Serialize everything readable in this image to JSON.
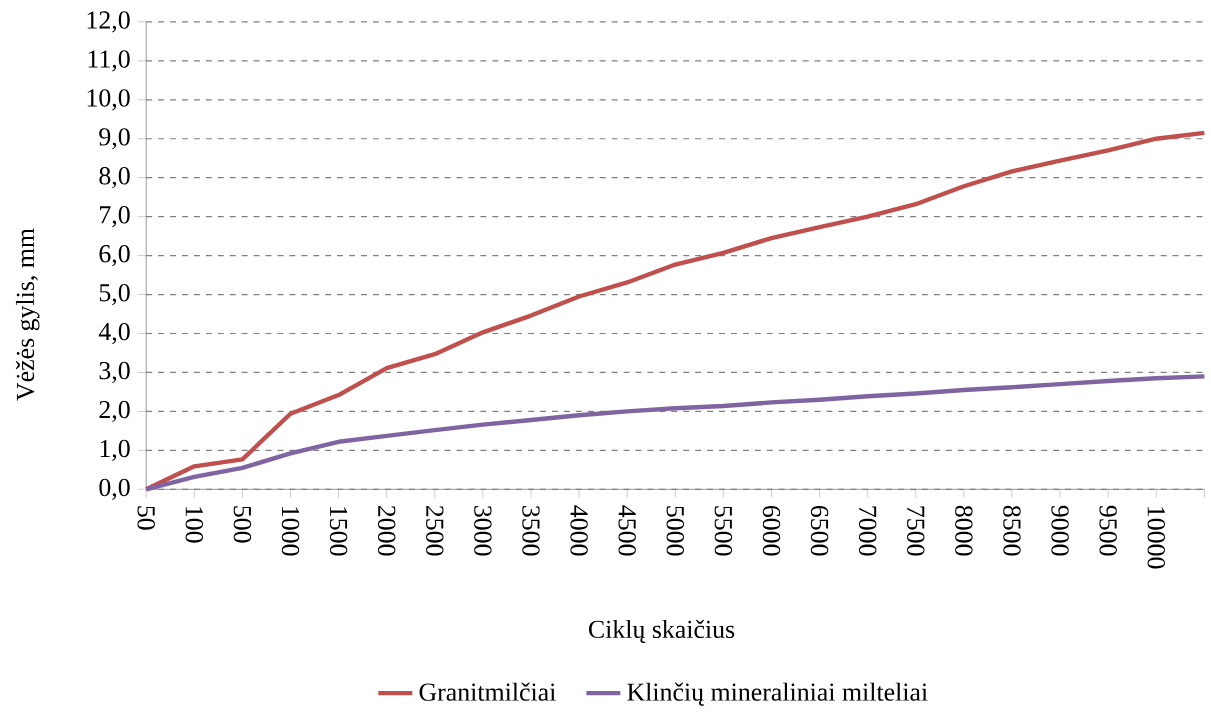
{
  "chart_data": {
    "type": "line",
    "xlabel": "Ciklų skaičius",
    "ylabel": "Vėžės gylis, mm",
    "categories": [
      "50",
      "100",
      "500",
      "1000",
      "1500",
      "2000",
      "2500",
      "3000",
      "3500",
      "4000",
      "4500",
      "5000",
      "5500",
      "6000",
      "6500",
      "7000",
      "7500",
      "8000",
      "8500",
      "9000",
      "9500",
      "10000",
      null
    ],
    "series": [
      {
        "name": "Granitmilčiai",
        "color": "#c0504d",
        "values": [
          0,
          0.59,
          0.77,
          1.94,
          2.42,
          3.11,
          3.47,
          4.03,
          4.46,
          4.95,
          5.31,
          5.77,
          6.07,
          6.45,
          6.73,
          7.0,
          7.32,
          7.78,
          8.16,
          8.44,
          8.7,
          9.0,
          9.15
        ]
      },
      {
        "name": "Klinčių mineraliniai milteliai",
        "color": "#8064a2",
        "values": [
          0,
          0.32,
          0.55,
          0.92,
          1.22,
          1.37,
          1.52,
          1.66,
          1.78,
          1.9,
          2.0,
          2.08,
          2.14,
          2.23,
          2.3,
          2.39,
          2.46,
          2.55,
          2.62,
          2.7,
          2.78,
          2.85,
          2.9
        ]
      }
    ],
    "ylim": [
      0,
      12
    ],
    "yticks": [
      {
        "value": 0,
        "label": "0,0"
      },
      {
        "value": 1,
        "label": "1,0"
      },
      {
        "value": 2,
        "label": "2,0"
      },
      {
        "value": 3,
        "label": "3,0"
      },
      {
        "value": 4,
        "label": "4,0"
      },
      {
        "value": 5,
        "label": "5,0"
      },
      {
        "value": 6,
        "label": "6,0"
      },
      {
        "value": 7,
        "label": "7,0"
      },
      {
        "value": 8,
        "label": "8,0"
      },
      {
        "value": 9,
        "label": "9,0"
      },
      {
        "value": 10,
        "label": "10,0"
      },
      {
        "value": 11,
        "label": "11,0"
      },
      {
        "value": 12,
        "label": "12,0"
      }
    ],
    "grid": "y",
    "legend": "bottom",
    "line_style": "solid"
  }
}
